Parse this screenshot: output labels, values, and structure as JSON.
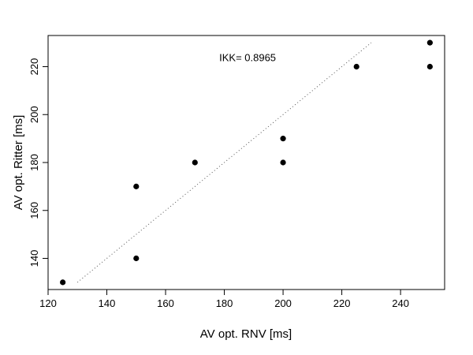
{
  "chart_data": {
    "type": "scatter",
    "xlabel": "AV opt. RNV [ms]",
    "ylabel": "AV opt. Ritter [ms]",
    "xlim": [
      120,
      255
    ],
    "ylim": [
      127,
      233
    ],
    "xticks": [
      120,
      140,
      160,
      180,
      200,
      220,
      240
    ],
    "yticks": [
      140,
      160,
      180,
      200,
      220
    ],
    "points": [
      {
        "x": 125,
        "y": 130
      },
      {
        "x": 150,
        "y": 140
      },
      {
        "x": 150,
        "y": 170
      },
      {
        "x": 170,
        "y": 180
      },
      {
        "x": 200,
        "y": 180
      },
      {
        "x": 200,
        "y": 190
      },
      {
        "x": 225,
        "y": 220
      },
      {
        "x": 250,
        "y": 220
      },
      {
        "x": 250,
        "y": 230
      }
    ],
    "identity_line": {
      "x": [
        130,
        230
      ],
      "y": [
        130,
        230
      ],
      "style": "dotted"
    },
    "annotation": "IKK= 0.8965",
    "annotation_position": {
      "x": 200,
      "y": 224
    },
    "grid": false,
    "marker_color": "#000000",
    "line_color": "#555555"
  }
}
